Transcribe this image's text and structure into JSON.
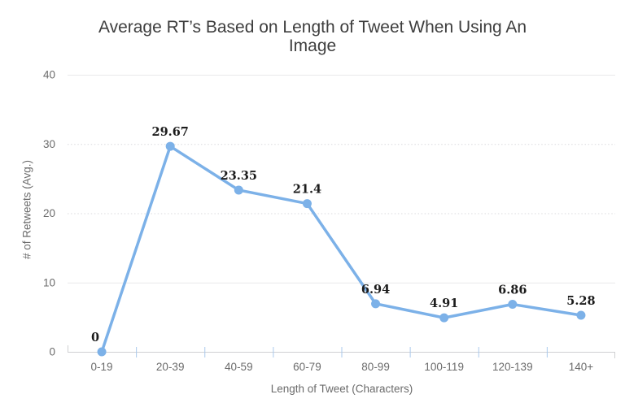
{
  "chart_data": {
    "type": "line",
    "title": "Average RT’s Based on Length of Tweet When Using An Image",
    "xlabel": "Length of Tweet (Characters)",
    "ylabel": "# of Retweets (Avg.)",
    "categories": [
      "0-19",
      "20-39",
      "40-59",
      "60-79",
      "80-99",
      "100-119",
      "120-139",
      "140+"
    ],
    "values": [
      0,
      29.67,
      23.35,
      21.4,
      6.94,
      4.91,
      6.86,
      5.28
    ],
    "point_labels": [
      "0",
      "29.67",
      "23.35",
      "21.4",
      "6.94",
      "4.91",
      "6.86",
      "5.28"
    ],
    "yticks": [
      0,
      10,
      20,
      30,
      40
    ],
    "ylim": [
      0,
      40
    ],
    "grid": true,
    "legend": false
  },
  "colors": {
    "line": "#7cb1e8",
    "marker": "#7cb1e8",
    "title_text": "#3e3e3e",
    "axis_text": "#6b6b6b",
    "data_label_text": "#1c1c1c",
    "gridline_solid": "#e9e9eb",
    "gridline_dotted": "#d9d9dd",
    "axis_line": "#cfd0d2",
    "tick": "#aac9ec",
    "background": "#ffffff"
  }
}
